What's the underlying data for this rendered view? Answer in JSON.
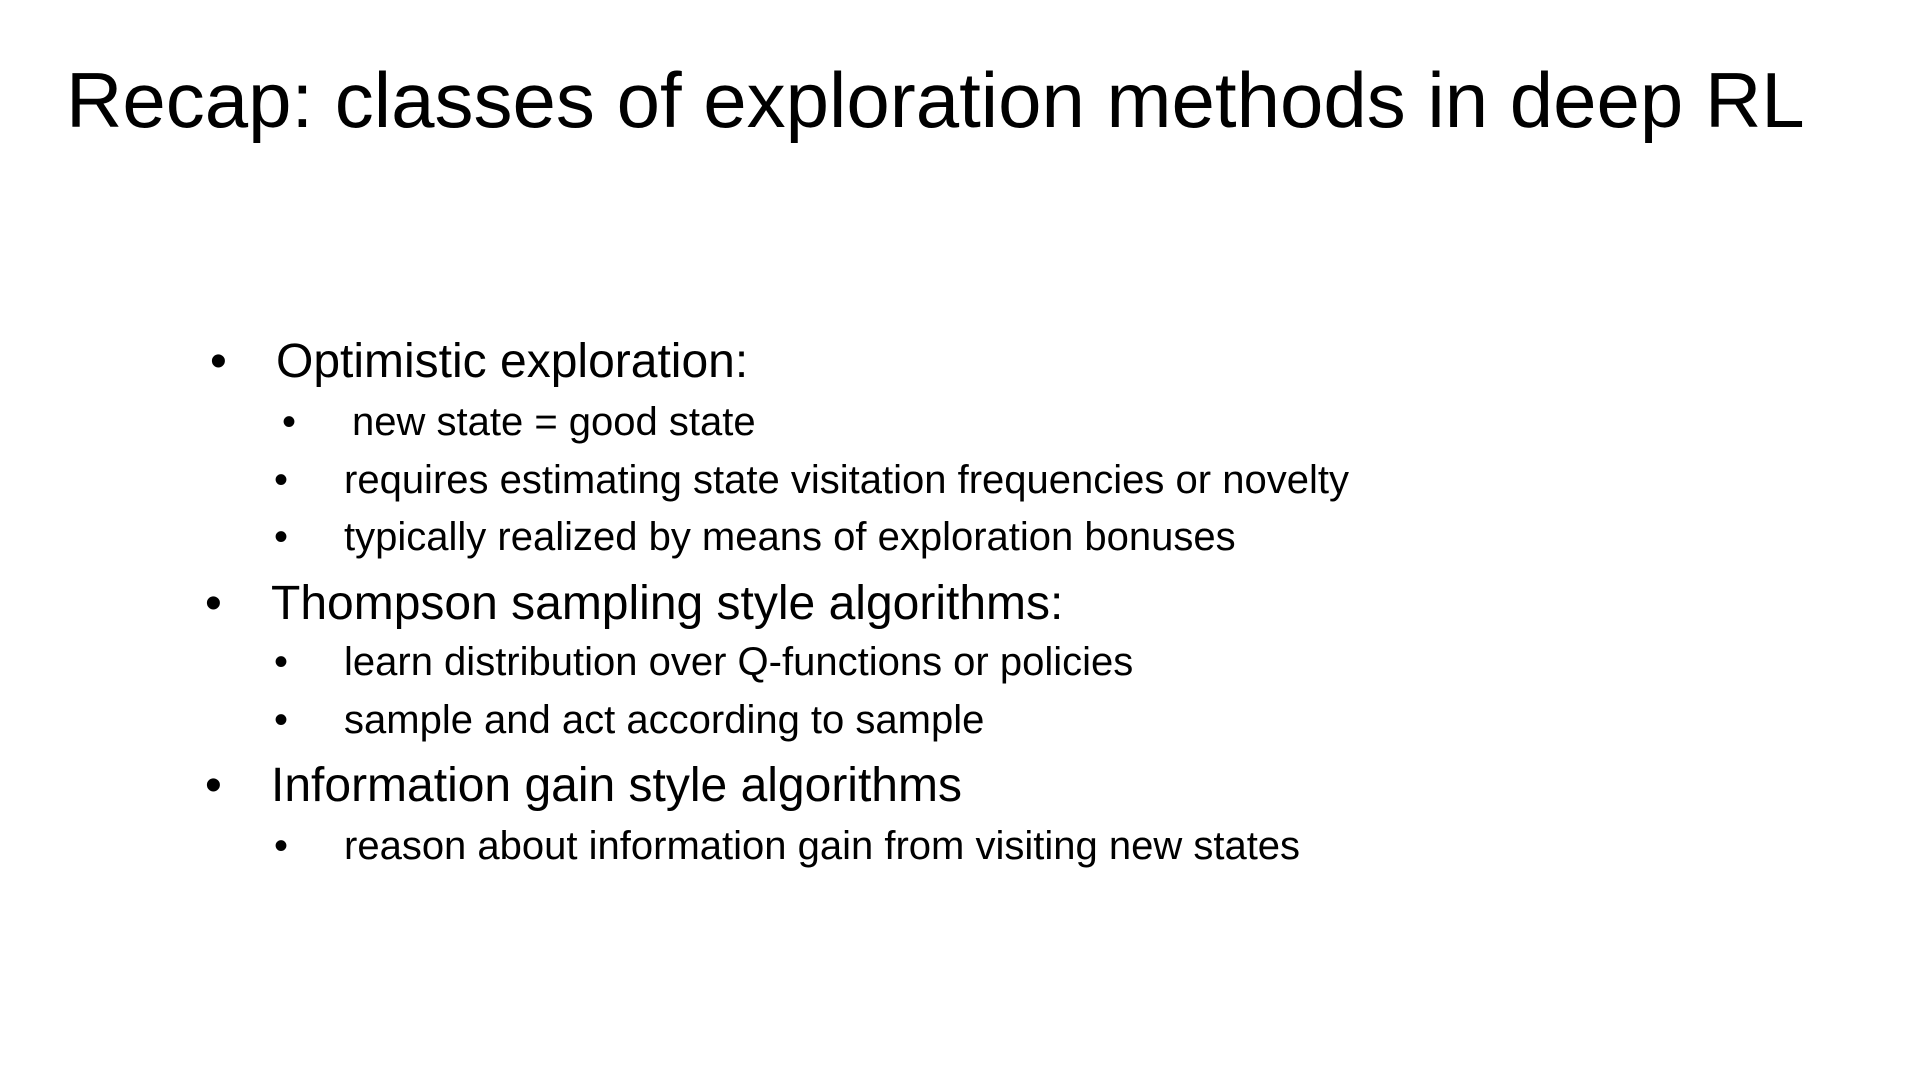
{
  "slide": {
    "title": "Recap: classes of exploration methods in deep RL",
    "bullet_glyph": "•",
    "sections": [
      {
        "heading": "Optimistic exploration:",
        "items": [
          "new state = good state",
          "requires estimating state visitation frequencies or novelty",
          "typically realized by means of exploration bonuses"
        ]
      },
      {
        "heading": "Thompson sampling style algorithms:",
        "items": [
          "learn distribution over Q-functions or policies",
          "sample and act according to sample"
        ]
      },
      {
        "heading": "Information gain style algorithms",
        "items": [
          "reason about information gain from visiting new states"
        ]
      }
    ]
  }
}
